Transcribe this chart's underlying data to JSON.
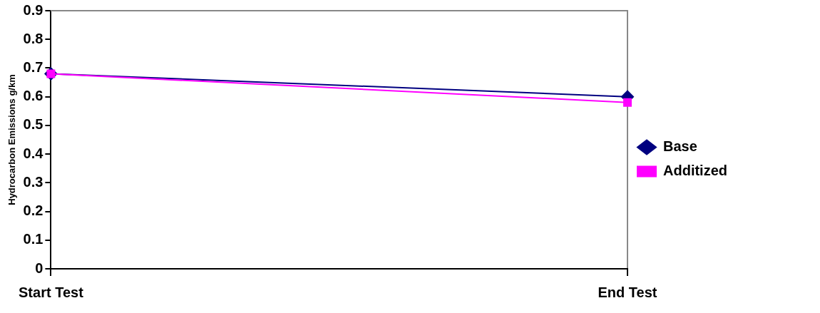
{
  "chart_data": {
    "type": "line",
    "ylabel": "Hydrocarbon Emissions g/km",
    "categories": [
      "Start Test",
      "End Test"
    ],
    "series": [
      {
        "name": "Base",
        "color": "#000080",
        "values": [
          0.68,
          0.6
        ],
        "marker": "diamond"
      },
      {
        "name": "Additized",
        "color": "#ff00ff",
        "values": [
          0.68,
          0.58
        ],
        "marker": "square"
      }
    ],
    "ylim": [
      0,
      0.9
    ],
    "yticks": [
      0,
      0.1,
      0.2,
      0.3,
      0.4,
      0.5,
      0.6,
      0.7,
      0.8,
      0.9
    ],
    "grid": "x",
    "legend": "right",
    "line_style": "solid"
  }
}
